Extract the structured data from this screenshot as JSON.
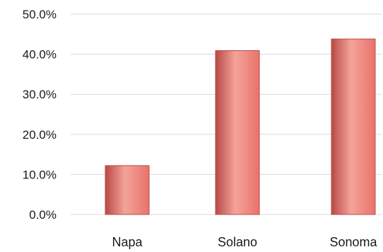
{
  "chart_data": {
    "type": "bar",
    "categories": [
      "Napa",
      "Solano",
      "Sonoma"
    ],
    "values": [
      12.2,
      40.9,
      43.8
    ],
    "value_unit": "%",
    "ylim": [
      0,
      50
    ],
    "yticks": [
      0,
      10,
      20,
      30,
      40,
      50
    ],
    "ytick_labels": [
      "0.0%",
      "10.0%",
      "20.0%",
      "30.0%",
      "40.0%",
      "50.0%"
    ],
    "grid": true,
    "legend": "none",
    "title": "",
    "xlabel": "",
    "ylabel": "",
    "colors": {
      "bar": "#e8736a",
      "bar_highlight": "#f4a39a",
      "bar_edge": "#b84a45",
      "grid": "#d9d9d9"
    }
  }
}
